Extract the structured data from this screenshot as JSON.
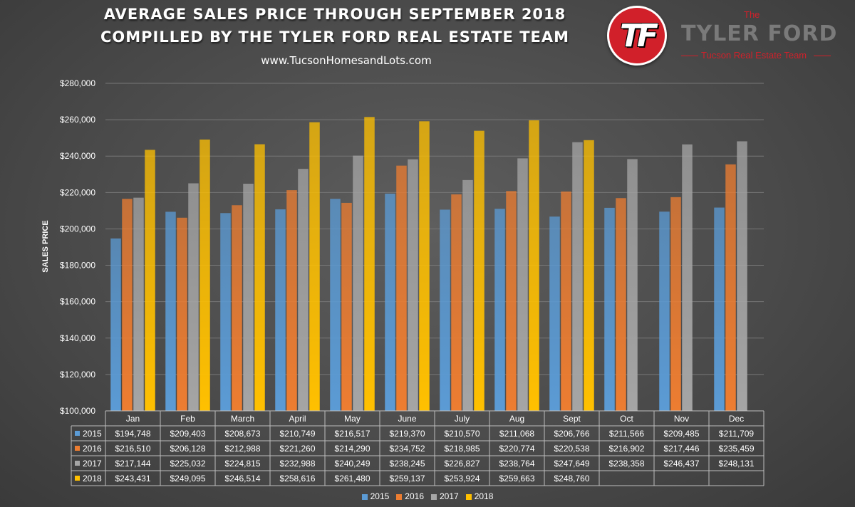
{
  "header": {
    "title_line1": "AVERAGE SALES PRICE THROUGH SEPTEMBER 2018",
    "title_line2": "COMPILLED BY THE TYLER FORD REAL ESTATE TEAM",
    "subtitle": "www.TucsonHomesandLots.com"
  },
  "logo": {
    "mark": "TF",
    "the": "The",
    "name": "TYLER FORD",
    "tagline": "Tucson Real Estate Team"
  },
  "chart_data": {
    "type": "bar",
    "ylabel": "SALES PRICE",
    "xlabel": "",
    "ylim": [
      100000,
      280000
    ],
    "yticks": [
      100000,
      120000,
      140000,
      160000,
      180000,
      200000,
      220000,
      240000,
      260000,
      280000
    ],
    "ytick_labels": [
      "$100,000",
      "$120,000",
      "$140,000",
      "$160,000",
      "$180,000",
      "$200,000",
      "$220,000",
      "$240,000",
      "$260,000",
      "$280,000"
    ],
    "grid": true,
    "legend_position": "bottom",
    "categories": [
      "Jan",
      "Feb",
      "March",
      "April",
      "May",
      "June",
      "July",
      "Aug",
      "Sept",
      "Oct",
      "Nov",
      "Dec"
    ],
    "series": [
      {
        "name": "2015",
        "color": "#5b9bd5",
        "values": [
          194748,
          209403,
          208673,
          210749,
          216517,
          219370,
          210570,
          211068,
          206766,
          211566,
          209485,
          211709
        ],
        "labels": [
          "$194,748",
          "$209,403",
          "$208,673",
          "$210,749",
          "$216,517",
          "$219,370",
          "$210,570",
          "$211,068",
          "$206,766",
          "$211,566",
          "$209,485",
          "$211,709"
        ]
      },
      {
        "name": "2016",
        "color": "#ed7d31",
        "values": [
          216510,
          206128,
          212988,
          221260,
          214290,
          234752,
          218985,
          220774,
          220538,
          216902,
          217446,
          235459
        ],
        "labels": [
          "$216,510",
          "$206,128",
          "$212,988",
          "$221,260",
          "$214,290",
          "$234,752",
          "$218,985",
          "$220,774",
          "$220,538",
          "$216,902",
          "$217,446",
          "$235,459"
        ]
      },
      {
        "name": "2017",
        "color": "#a5a5a5",
        "values": [
          217144,
          225032,
          224815,
          232988,
          240249,
          238245,
          226827,
          238764,
          247649,
          238358,
          246437,
          248131
        ],
        "labels": [
          "$217,144",
          "$225,032",
          "$224,815",
          "$232,988",
          "$240,249",
          "$238,245",
          "$226,827",
          "$238,764",
          "$247,649",
          "$238,358",
          "$246,437",
          "$248,131"
        ]
      },
      {
        "name": "2018",
        "color": "#ffc000",
        "values": [
          243431,
          249095,
          246514,
          258616,
          261480,
          259137,
          253924,
          259663,
          248760,
          null,
          null,
          null
        ],
        "labels": [
          "$243,431",
          "$249,095",
          "$246,514",
          "$258,616",
          "$261,480",
          "$259,137",
          "$253,924",
          "$259,663",
          "$248,760",
          "",
          "",
          ""
        ]
      }
    ]
  }
}
